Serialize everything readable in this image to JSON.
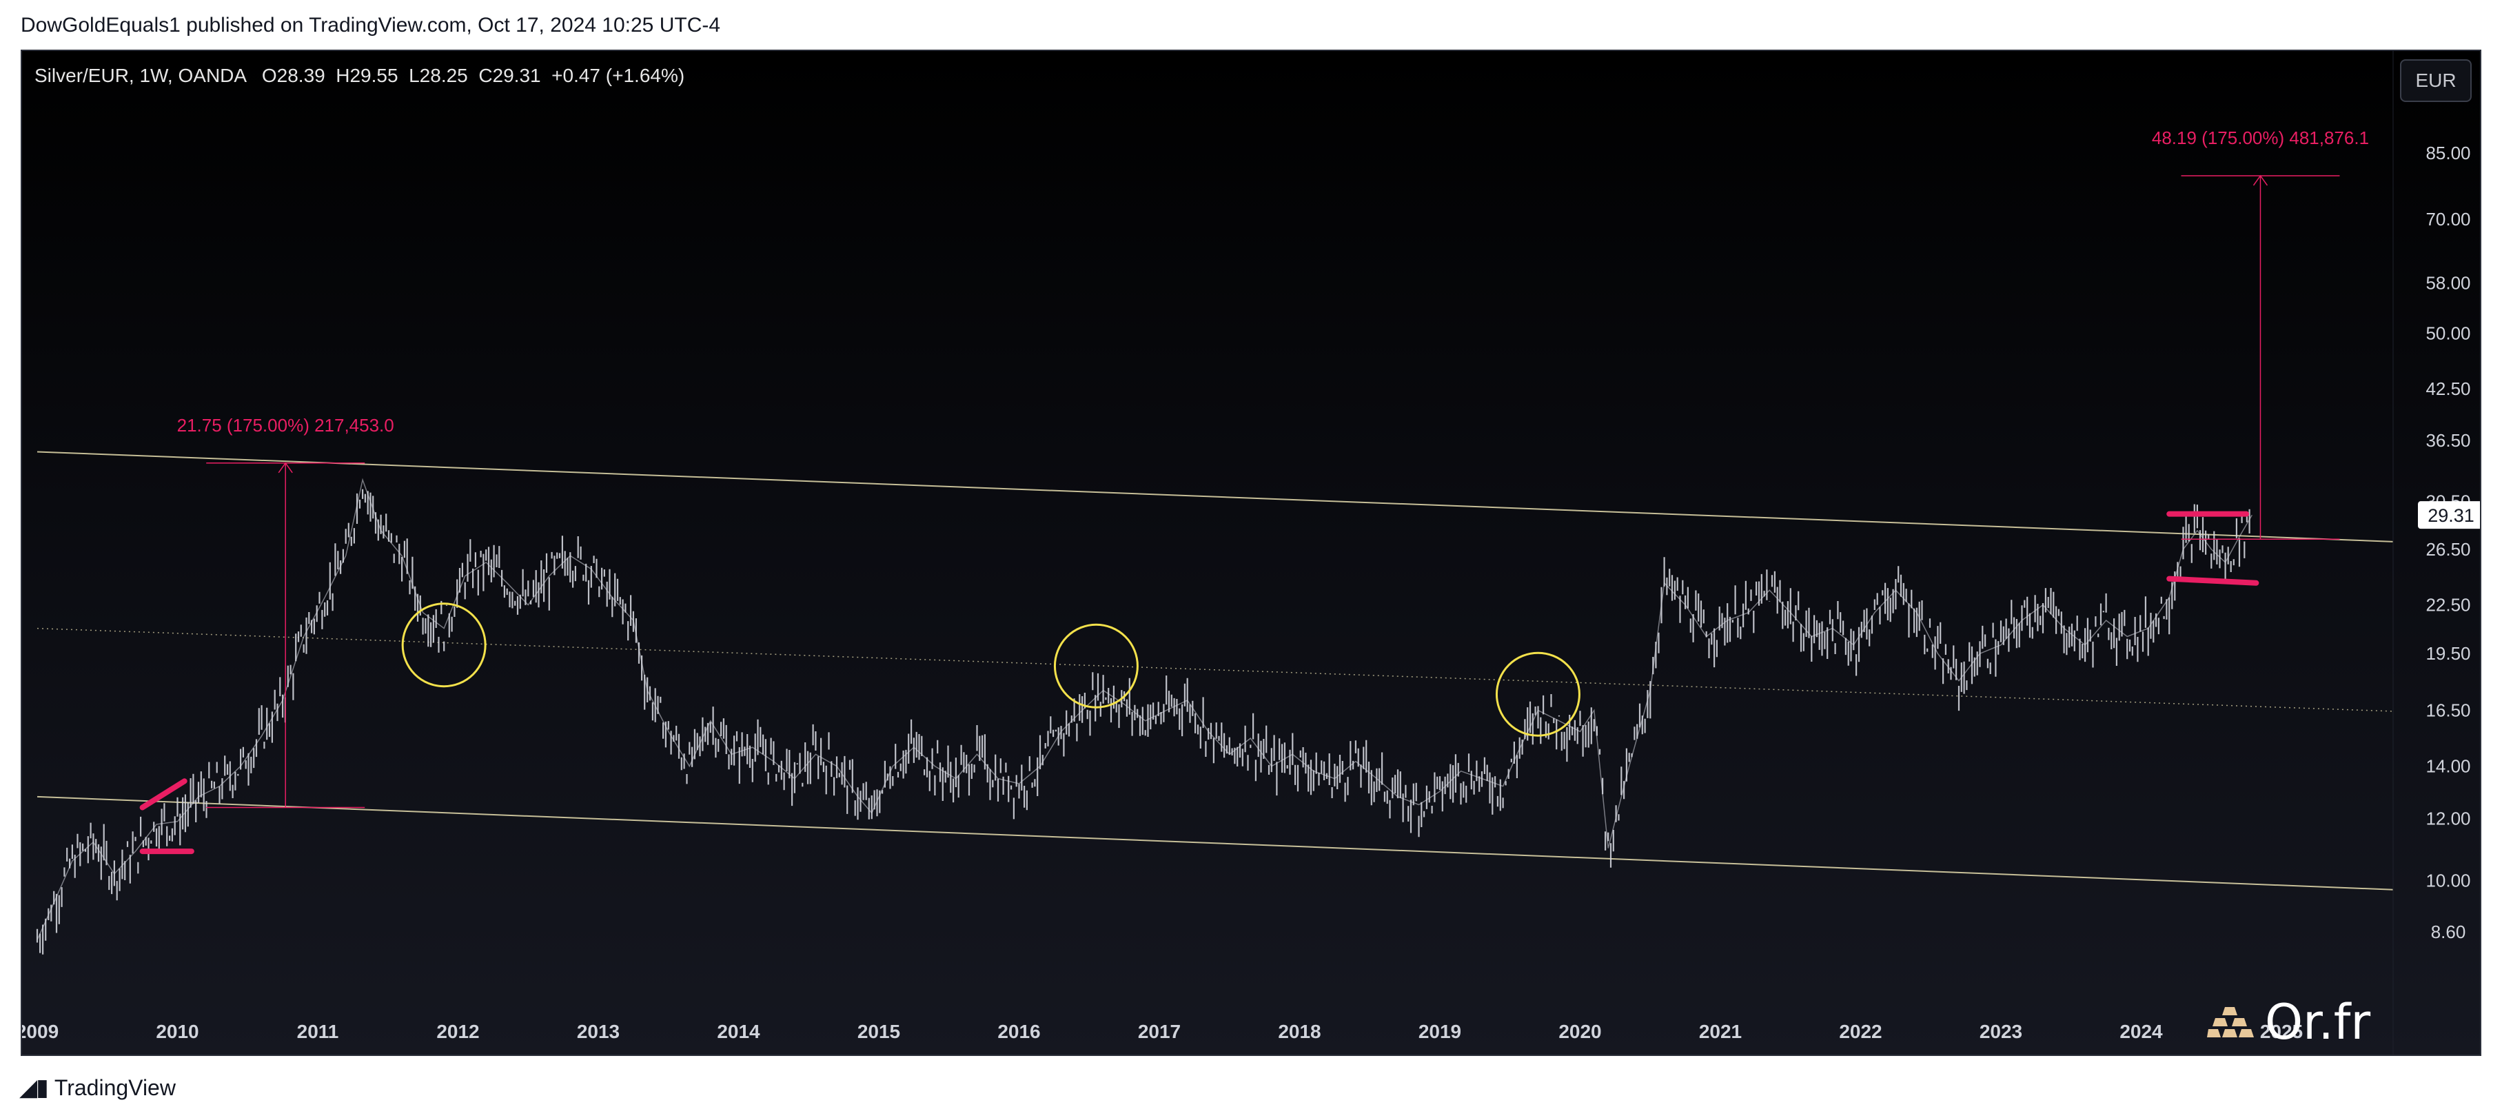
{
  "publisher_line": "DowGoldEquals1 published on TradingView.com, Oct 17, 2024 10:25 UTC-4",
  "brand": {
    "tradingview_label": "TradingView",
    "watermark": "Or.fr",
    "watermark_icon": "gold-bars-icon"
  },
  "legend": {
    "symbol": "Silver/EUR, 1W, OANDA",
    "ohlc": "O28.39  H29.55  L28.25  C29.31  +0.47 (+1.64%)"
  },
  "currency_button": "EUR",
  "colors": {
    "background": "#000000",
    "candles": "#d1d4dc",
    "channel": "#e8dfb0",
    "measure": "#e91e63",
    "circles": "#f3e14b",
    "last_price_bg": "#ffffff"
  },
  "chart_data": {
    "type": "line",
    "title": "",
    "xlabel": "",
    "ylabel": "",
    "scale": "log",
    "y_ticks": [
      "85.00",
      "70.00",
      "58.00",
      "50.00",
      "42.50",
      "36.50",
      "30.50",
      "26.50",
      "22.50",
      "19.50",
      "16.50",
      "14.00",
      "12.00",
      "10.00",
      "8.60"
    ],
    "x_ticks": [
      "2009",
      "2010",
      "2011",
      "2012",
      "2013",
      "2014",
      "2015",
      "2016",
      "2017",
      "2018",
      "2019",
      "2020",
      "2021",
      "2022",
      "2023",
      "2024",
      "2025"
    ],
    "x_range": [
      2009.0,
      2026.0
    ],
    "last_price": "29.31",
    "series": [
      {
        "x": [
          2009.0,
          2009.1,
          2009.25,
          2009.4,
          2009.55,
          2009.7,
          2009.85,
          2010.0,
          2010.15,
          2010.3,
          2010.45,
          2010.6,
          2010.75,
          2010.9,
          2011.05,
          2011.2,
          2011.32,
          2011.45,
          2011.6,
          2011.75,
          2011.9,
          2012.05,
          2012.2,
          2012.35,
          2012.5,
          2012.65,
          2012.8,
          2012.95,
          2013.1,
          2013.25,
          2013.35,
          2013.5,
          2013.65,
          2013.8,
          2013.95,
          2014.1,
          2014.25,
          2014.4,
          2014.55,
          2014.7,
          2014.85,
          2014.95,
          2015.1,
          2015.25,
          2015.4,
          2015.55,
          2015.7,
          2015.85,
          2016.0,
          2016.15,
          2016.3,
          2016.45,
          2016.6,
          2016.75,
          2016.9,
          2017.05,
          2017.2,
          2017.35,
          2017.5,
          2017.65,
          2017.8,
          2017.95,
          2018.1,
          2018.25,
          2018.4,
          2018.55,
          2018.7,
          2018.85,
          2019.0,
          2019.15,
          2019.3,
          2019.45,
          2019.55,
          2019.7,
          2019.85,
          2020.0,
          2020.1,
          2020.2,
          2020.35,
          2020.5,
          2020.6,
          2020.75,
          2020.9,
          2021.05,
          2021.2,
          2021.35,
          2021.5,
          2021.65,
          2021.8,
          2021.95,
          2022.1,
          2022.25,
          2022.4,
          2022.55,
          2022.7,
          2022.85,
          2023.0,
          2023.15,
          2023.3,
          2023.45,
          2023.6,
          2023.75,
          2023.9,
          2024.05,
          2024.2,
          2024.3,
          2024.4,
          2024.5,
          2024.6,
          2024.7,
          2024.79
        ],
        "y": [
          8.4,
          9.2,
          10.6,
          11.2,
          10.2,
          10.9,
          11.8,
          11.9,
          12.8,
          13.2,
          14.0,
          15.3,
          17.0,
          20.5,
          23.0,
          26.0,
          32.5,
          28.0,
          26.0,
          22.0,
          21.0,
          24.5,
          25.5,
          24.0,
          22.5,
          24.5,
          26.0,
          25.0,
          23.0,
          21.5,
          17.5,
          15.5,
          14.0,
          16.0,
          14.5,
          14.8,
          14.2,
          13.5,
          14.5,
          14.0,
          12.8,
          12.2,
          14.0,
          14.8,
          14.0,
          13.5,
          14.5,
          13.5,
          13.3,
          14.0,
          15.5,
          16.5,
          17.5,
          16.8,
          16.0,
          16.5,
          17.0,
          15.5,
          14.5,
          15.2,
          14.0,
          14.5,
          13.8,
          13.5,
          14.2,
          13.5,
          12.8,
          12.5,
          13.0,
          13.8,
          13.5,
          13.2,
          14.5,
          16.5,
          16.0,
          15.5,
          16.5,
          11.0,
          14.0,
          17.5,
          24.0,
          22.5,
          20.5,
          21.5,
          22.0,
          23.5,
          22.0,
          20.5,
          21.0,
          20.0,
          22.0,
          23.5,
          22.0,
          19.5,
          18.0,
          19.5,
          20.0,
          21.5,
          22.5,
          21.0,
          20.0,
          21.5,
          20.5,
          21.0,
          23.0,
          26.5,
          28.0,
          26.5,
          25.5,
          27.5,
          29.31
        ],
        "name": ""
      }
    ],
    "channel_lines": [
      {
        "x": [
          2009.0,
          2026.0
        ],
        "y": [
          35.3,
          27.0
        ],
        "style": "solid"
      },
      {
        "x": [
          2009.0,
          2026.0
        ],
        "y": [
          21.0,
          16.4
        ],
        "style": "dotted"
      },
      {
        "x": [
          2009.0,
          2026.0
        ],
        "y": [
          12.8,
          9.7
        ],
        "style": "solid"
      }
    ],
    "measures": [
      {
        "label": "21.75 (175.00%) 217,453.0",
        "x": 2010.77,
        "y_from": 12.4,
        "y_to": 34.15
      },
      {
        "label": "48.19 (175.00%) 481,876.1",
        "x": 2024.85,
        "y_from": 27.3,
        "y_to": 79.5
      }
    ],
    "range_markers": [
      {
        "x_from": 2009.75,
        "x_to": 2010.1,
        "y": 10.9
      },
      {
        "x_from": 2009.75,
        "x_to": 2010.05,
        "y_from": 12.4,
        "y_to": 13.4
      },
      {
        "x_from": 2024.2,
        "x_to": 2024.75,
        "y": 29.4
      },
      {
        "x_from": 2024.2,
        "x_to": 2024.82,
        "y_from": 24.3,
        "y_to": 24.0
      }
    ],
    "highlight_circles": [
      {
        "x": 2011.9,
        "y": 20.0
      },
      {
        "x": 2016.55,
        "y": 18.8
      },
      {
        "x": 2019.7,
        "y": 17.3
      }
    ]
  }
}
